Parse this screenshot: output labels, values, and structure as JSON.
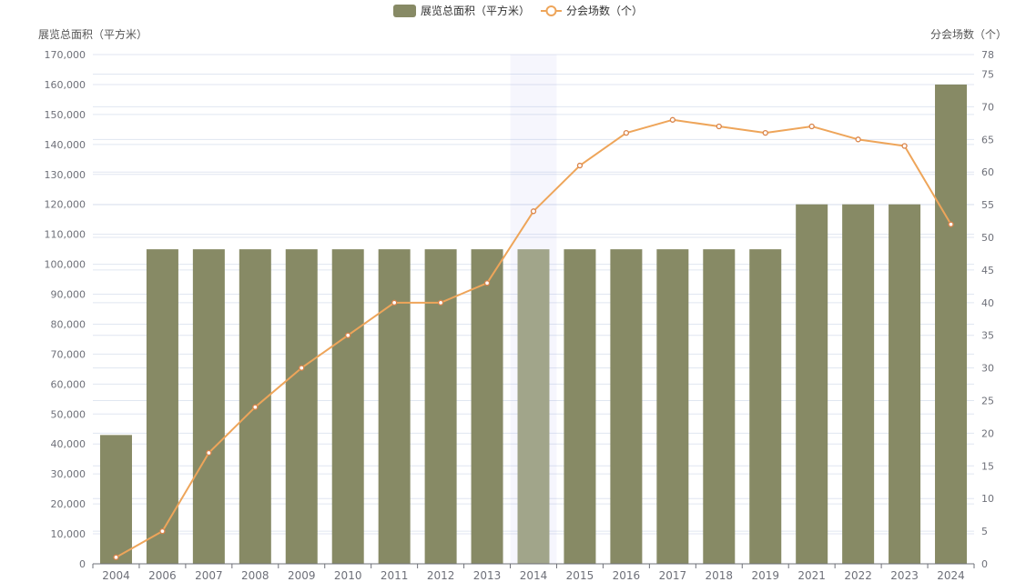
{
  "chart_data": {
    "type": "bar",
    "categories": [
      "2004",
      "2006",
      "2007",
      "2008",
      "2009",
      "2010",
      "2011",
      "2012",
      "2013",
      "2014",
      "2015",
      "2016",
      "2017",
      "2018",
      "2019",
      "2021",
      "2022",
      "2023",
      "2024"
    ],
    "series": [
      {
        "name": "展览总面积（平方米）",
        "type": "bar",
        "axis": "left",
        "color": "#878a65",
        "values": [
          43000,
          105000,
          105000,
          105000,
          105000,
          105000,
          105000,
          105000,
          105000,
          105000,
          105000,
          105000,
          105000,
          105000,
          105000,
          120000,
          120000,
          120000,
          160000
        ]
      },
      {
        "name": "分会场数（个）",
        "type": "line",
        "axis": "right",
        "color": "#eea55a",
        "values": [
          1,
          5,
          17,
          24,
          30,
          35,
          40,
          40,
          43,
          54,
          61,
          66,
          68,
          67,
          66,
          67,
          65,
          64,
          52
        ]
      }
    ],
    "y_left": {
      "label": "展览总面积（平方米）",
      "min": 0,
      "max": 170000,
      "step": 10000,
      "ticks": [
        "0",
        "10,000",
        "20,000",
        "30,000",
        "40,000",
        "50,000",
        "60,000",
        "70,000",
        "80,000",
        "90,000",
        "100,000",
        "110,000",
        "120,000",
        "130,000",
        "140,000",
        "150,000",
        "160,000",
        "170,000"
      ]
    },
    "y_right": {
      "label": "分会场数（个）",
      "min": 0,
      "max": 78,
      "ticks": [
        "0",
        "5",
        "10",
        "15",
        "20",
        "25",
        "30",
        "35",
        "40",
        "45",
        "50",
        "55",
        "60",
        "65",
        "70",
        "75",
        "78"
      ],
      "tick_values": [
        0,
        5,
        10,
        15,
        20,
        25,
        30,
        35,
        40,
        45,
        50,
        55,
        60,
        65,
        70,
        75,
        78
      ]
    },
    "highlighted_category": "2014",
    "legend": {
      "placement": "top-center"
    },
    "grid": true
  }
}
